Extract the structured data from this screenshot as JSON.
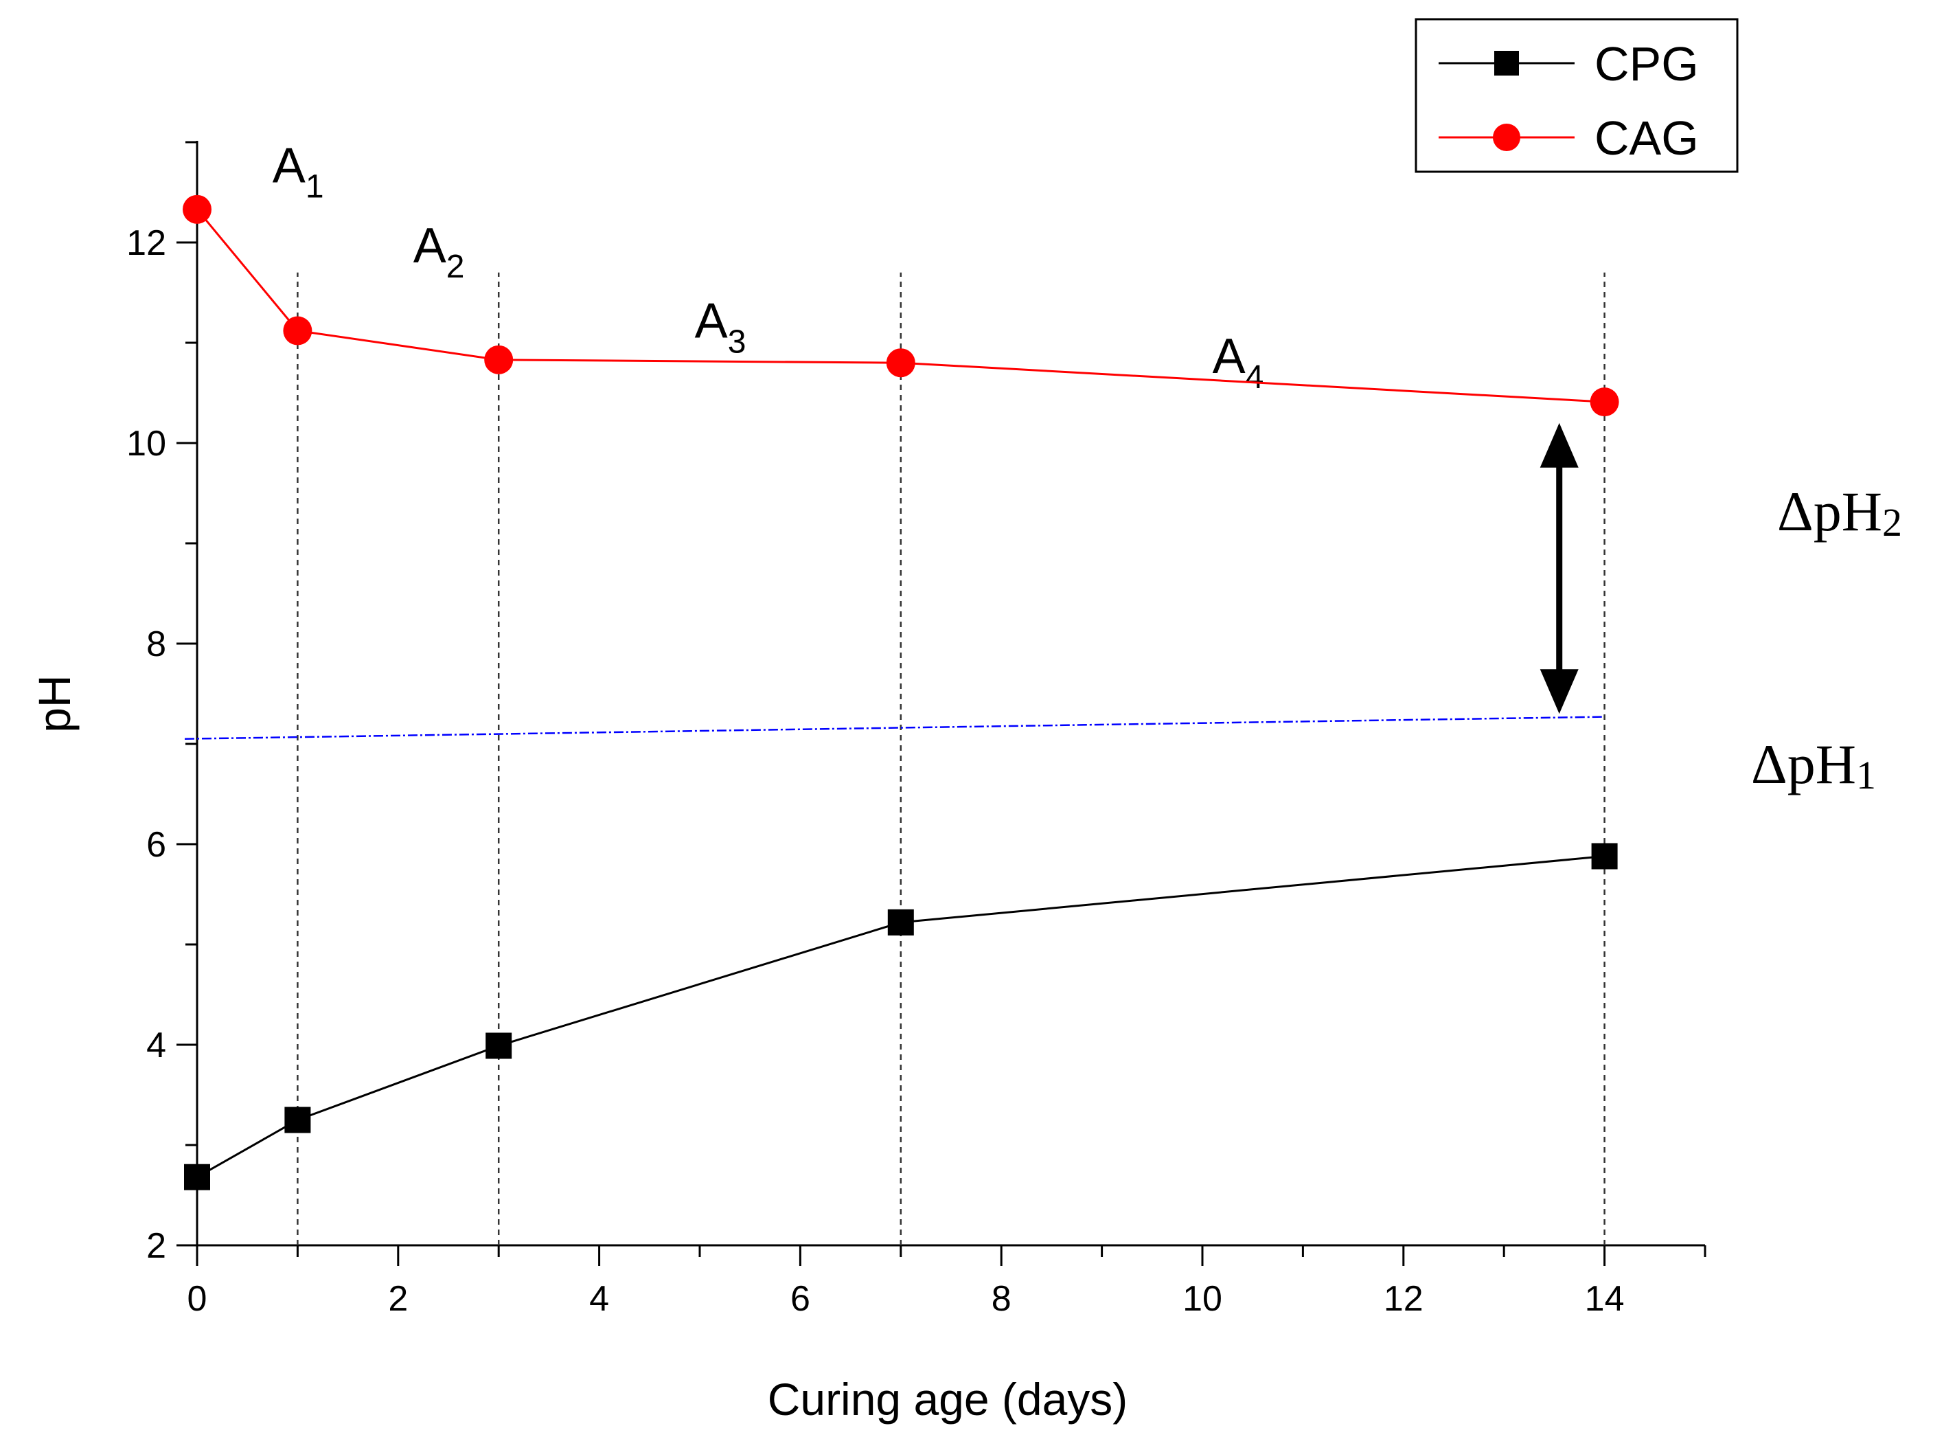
{
  "chart_data": {
    "type": "line",
    "xlabel": "Curing age (days)",
    "ylabel": "pH",
    "xlim": [
      0,
      15
    ],
    "ylim": [
      2,
      13
    ],
    "xticks": [
      0,
      2,
      4,
      6,
      8,
      10,
      12,
      14
    ],
    "yticks": [
      2,
      4,
      6,
      8,
      10,
      12
    ],
    "series": [
      {
        "name": "CPG",
        "color": "#000000",
        "marker": "square",
        "x": [
          0,
          1,
          3,
          7,
          14
        ],
        "y": [
          2.68,
          3.25,
          3.99,
          5.22,
          5.88
        ]
      },
      {
        "name": "CAG",
        "color": "#ff0000",
        "marker": "circle",
        "x": [
          0,
          1,
          3,
          7,
          14
        ],
        "y": [
          12.33,
          11.12,
          10.83,
          10.8,
          10.41
        ]
      }
    ],
    "reference_line": {
      "color": "#0000ff",
      "x": [
        0,
        14
      ],
      "y": [
        7.05,
        7.27
      ]
    },
    "region_dividers": [
      1,
      3,
      7,
      14
    ],
    "region_labels": [
      {
        "main": "A",
        "sub": "1",
        "x": 0.75,
        "y": 12.6
      },
      {
        "main": "A",
        "sub": "2",
        "x": 2.15,
        "y": 11.8
      },
      {
        "main": "A",
        "sub": "3",
        "x": 4.95,
        "y": 11.05
      },
      {
        "main": "A",
        "sub": "4",
        "x": 10.1,
        "y": 10.7
      }
    ],
    "annotations": [
      {
        "main": "ΔpH",
        "sub": "2"
      },
      {
        "main": "ΔpH",
        "sub": "1"
      }
    ],
    "arrow": {
      "x": 13.55,
      "y_from": 7.3,
      "y_to": 10.2
    },
    "legend_position": "top-right"
  }
}
